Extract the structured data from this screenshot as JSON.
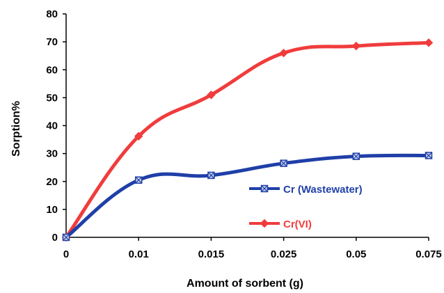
{
  "chart_data": {
    "type": "line",
    "categories": [
      "0",
      "0.01",
      "0.015",
      "0.025",
      "0.05",
      "0.075"
    ],
    "series": [
      {
        "name": "Cr (Wastewater)",
        "values": [
          0,
          20.5,
          22.2,
          26.5,
          29.0,
          29.3
        ],
        "color": "#1f3fa8",
        "marker": "square-x"
      },
      {
        "name": "Cr(VI)",
        "values": [
          0,
          36.2,
          51.0,
          66.0,
          68.5,
          69.7
        ],
        "color": "#f03c3c",
        "marker": "diamond"
      }
    ],
    "xlabel": "Amount of sorbent (g)",
    "ylabel": "Sorption%",
    "ylim": [
      0,
      80
    ],
    "yticks": [
      0,
      10,
      20,
      30,
      40,
      50,
      60,
      70,
      80
    ],
    "grid": false,
    "smooth": true,
    "legend_position": "right-center"
  }
}
